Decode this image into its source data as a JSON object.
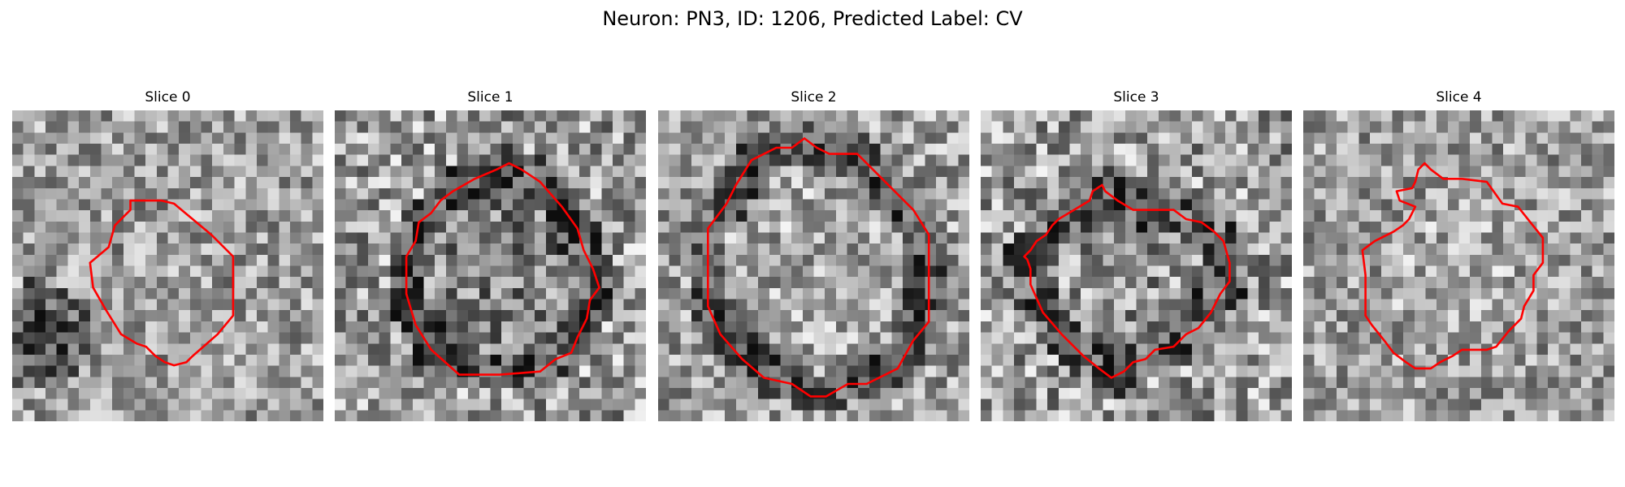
{
  "figure": {
    "title": "Neuron: PN3, ID: 1206, Predicted Label: CV"
  },
  "panels": [
    {
      "title": "Slice 0",
      "image": {
        "description_icon": "grayscale-em-patch",
        "center_intensity": 0.62,
        "ring_intensity": 0.6,
        "dark_blob": true,
        "contrast": 0.28
      },
      "outline": {
        "color": "#ff0000",
        "points": [
          [
            0.38,
            0.29
          ],
          [
            0.48,
            0.29
          ],
          [
            0.52,
            0.3
          ],
          [
            0.64,
            0.4
          ],
          [
            0.71,
            0.47
          ],
          [
            0.71,
            0.66
          ],
          [
            0.66,
            0.72
          ],
          [
            0.58,
            0.79
          ],
          [
            0.56,
            0.81
          ],
          [
            0.52,
            0.82
          ],
          [
            0.49,
            0.81
          ],
          [
            0.46,
            0.79
          ],
          [
            0.43,
            0.76
          ],
          [
            0.4,
            0.75
          ],
          [
            0.35,
            0.72
          ],
          [
            0.3,
            0.64
          ],
          [
            0.26,
            0.57
          ],
          [
            0.25,
            0.49
          ],
          [
            0.31,
            0.44
          ],
          [
            0.33,
            0.37
          ],
          [
            0.38,
            0.32
          ]
        ]
      }
    },
    {
      "title": "Slice 1",
      "image": {
        "description_icon": "grayscale-em-patch",
        "center_intensity": 0.5,
        "ring_intensity": 0.3,
        "dark_blob": false,
        "contrast": 0.34
      },
      "outline": {
        "color": "#ff0000",
        "points": [
          [
            0.38,
            0.26
          ],
          [
            0.45,
            0.22
          ],
          [
            0.52,
            0.19
          ],
          [
            0.56,
            0.17
          ],
          [
            0.6,
            0.19
          ],
          [
            0.66,
            0.23
          ],
          [
            0.73,
            0.31
          ],
          [
            0.78,
            0.38
          ],
          [
            0.8,
            0.45
          ],
          [
            0.83,
            0.51
          ],
          [
            0.85,
            0.57
          ],
          [
            0.82,
            0.61
          ],
          [
            0.81,
            0.67
          ],
          [
            0.78,
            0.73
          ],
          [
            0.76,
            0.78
          ],
          [
            0.71,
            0.8
          ],
          [
            0.66,
            0.84
          ],
          [
            0.53,
            0.85
          ],
          [
            0.4,
            0.85
          ],
          [
            0.31,
            0.77
          ],
          [
            0.26,
            0.69
          ],
          [
            0.23,
            0.59
          ],
          [
            0.23,
            0.47
          ],
          [
            0.26,
            0.42
          ],
          [
            0.27,
            0.36
          ],
          [
            0.31,
            0.33
          ],
          [
            0.34,
            0.29
          ]
        ]
      }
    },
    {
      "title": "Slice 2",
      "image": {
        "description_icon": "grayscale-em-patch",
        "center_intensity": 0.66,
        "ring_intensity": 0.32,
        "dark_blob": false,
        "contrast": 0.3
      },
      "outline": {
        "color": "#ff0000",
        "points": [
          [
            0.3,
            0.16
          ],
          [
            0.38,
            0.12
          ],
          [
            0.43,
            0.12
          ],
          [
            0.47,
            0.09
          ],
          [
            0.51,
            0.12
          ],
          [
            0.55,
            0.14
          ],
          [
            0.64,
            0.14
          ],
          [
            0.72,
            0.22
          ],
          [
            0.82,
            0.32
          ],
          [
            0.87,
            0.4
          ],
          [
            0.87,
            0.68
          ],
          [
            0.82,
            0.74
          ],
          [
            0.77,
            0.83
          ],
          [
            0.67,
            0.88
          ],
          [
            0.61,
            0.88
          ],
          [
            0.54,
            0.92
          ],
          [
            0.49,
            0.92
          ],
          [
            0.43,
            0.88
          ],
          [
            0.34,
            0.86
          ],
          [
            0.27,
            0.8
          ],
          [
            0.2,
            0.72
          ],
          [
            0.16,
            0.63
          ],
          [
            0.16,
            0.38
          ],
          [
            0.22,
            0.3
          ],
          [
            0.25,
            0.24
          ]
        ]
      }
    },
    {
      "title": "Slice 3",
      "image": {
        "description_icon": "grayscale-em-patch",
        "center_intensity": 0.58,
        "ring_intensity": 0.35,
        "dark_blob": false,
        "contrast": 0.34
      },
      "outline": {
        "color": "#ff0000",
        "points": [
          [
            0.25,
            0.35
          ],
          [
            0.3,
            0.32
          ],
          [
            0.35,
            0.29
          ],
          [
            0.36,
            0.26
          ],
          [
            0.39,
            0.24
          ],
          [
            0.4,
            0.26
          ],
          [
            0.44,
            0.29
          ],
          [
            0.49,
            0.32
          ],
          [
            0.62,
            0.32
          ],
          [
            0.66,
            0.35
          ],
          [
            0.71,
            0.36
          ],
          [
            0.75,
            0.39
          ],
          [
            0.78,
            0.42
          ],
          [
            0.8,
            0.49
          ],
          [
            0.8,
            0.55
          ],
          [
            0.77,
            0.59
          ],
          [
            0.74,
            0.65
          ],
          [
            0.7,
            0.7
          ],
          [
            0.66,
            0.72
          ],
          [
            0.62,
            0.76
          ],
          [
            0.56,
            0.77
          ],
          [
            0.53,
            0.8
          ],
          [
            0.49,
            0.81
          ],
          [
            0.46,
            0.84
          ],
          [
            0.42,
            0.86
          ],
          [
            0.38,
            0.83
          ],
          [
            0.33,
            0.79
          ],
          [
            0.26,
            0.72
          ],
          [
            0.2,
            0.65
          ],
          [
            0.16,
            0.56
          ],
          [
            0.16,
            0.51
          ],
          [
            0.15,
            0.48
          ],
          [
            0.14,
            0.47
          ],
          [
            0.16,
            0.45
          ],
          [
            0.18,
            0.42
          ],
          [
            0.21,
            0.4
          ],
          [
            0.23,
            0.37
          ]
        ]
      }
    },
    {
      "title": "Slice 4",
      "image": {
        "description_icon": "grayscale-em-patch",
        "center_intensity": 0.67,
        "ring_intensity": 0.6,
        "dark_blob": false,
        "contrast": 0.28
      },
      "outline": {
        "color": "#ff0000",
        "points": [
          [
            0.34,
            0.35
          ],
          [
            0.36,
            0.31
          ],
          [
            0.31,
            0.29
          ],
          [
            0.3,
            0.26
          ],
          [
            0.35,
            0.25
          ],
          [
            0.36,
            0.23
          ],
          [
            0.37,
            0.19
          ],
          [
            0.39,
            0.17
          ],
          [
            0.41,
            0.19
          ],
          [
            0.45,
            0.22
          ],
          [
            0.51,
            0.22
          ],
          [
            0.59,
            0.23
          ],
          [
            0.64,
            0.3
          ],
          [
            0.69,
            0.31
          ],
          [
            0.73,
            0.36
          ],
          [
            0.77,
            0.41
          ],
          [
            0.77,
            0.49
          ],
          [
            0.74,
            0.53
          ],
          [
            0.74,
            0.58
          ],
          [
            0.71,
            0.63
          ],
          [
            0.7,
            0.67
          ],
          [
            0.66,
            0.71
          ],
          [
            0.62,
            0.76
          ],
          [
            0.59,
            0.77
          ],
          [
            0.51,
            0.77
          ],
          [
            0.48,
            0.79
          ],
          [
            0.44,
            0.81
          ],
          [
            0.41,
            0.83
          ],
          [
            0.36,
            0.83
          ],
          [
            0.33,
            0.81
          ],
          [
            0.29,
            0.78
          ],
          [
            0.26,
            0.74
          ],
          [
            0.22,
            0.69
          ],
          [
            0.2,
            0.66
          ],
          [
            0.2,
            0.53
          ],
          [
            0.19,
            0.45
          ],
          [
            0.23,
            0.42
          ],
          [
            0.29,
            0.39
          ],
          [
            0.32,
            0.37
          ]
        ]
      }
    }
  ]
}
